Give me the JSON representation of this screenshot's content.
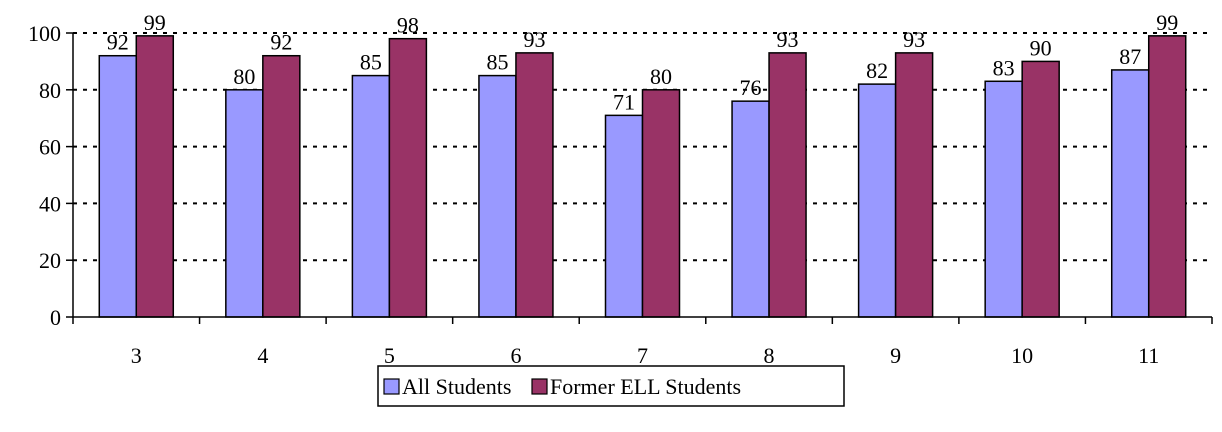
{
  "chart_data": {
    "type": "bar",
    "title": "",
    "xlabel": "",
    "ylabel": "",
    "categories": [
      "3",
      "4",
      "5",
      "6",
      "7",
      "8",
      "9",
      "10",
      "11"
    ],
    "series": [
      {
        "name": "All Students",
        "values": [
          92,
          80,
          85,
          85,
          71,
          76,
          82,
          83,
          87
        ],
        "color": "#9999FF"
      },
      {
        "name": "Former ELL Students",
        "values": [
          99,
          92,
          98,
          93,
          80,
          93,
          93,
          90,
          99
        ],
        "color": "#993366"
      }
    ],
    "ylim": [
      0,
      100
    ],
    "yticks": [
      0,
      20,
      40,
      60,
      80,
      100
    ],
    "grid": "horizontal dotted",
    "data_labels": true,
    "legend_position": "bottom"
  }
}
